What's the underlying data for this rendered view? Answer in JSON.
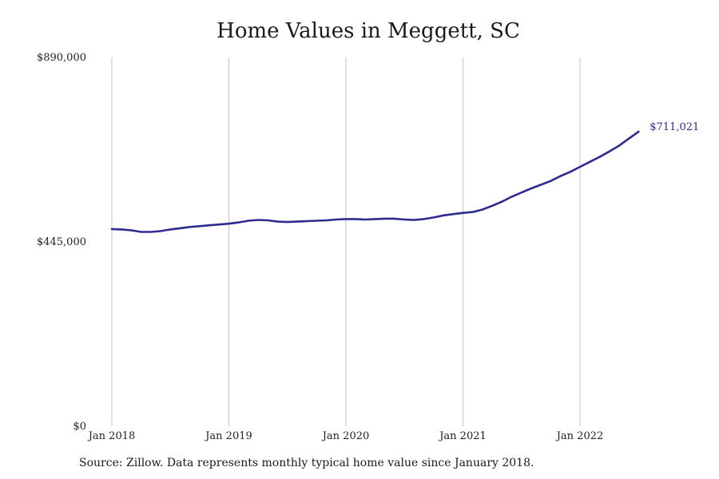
{
  "chart_data": {
    "type": "line",
    "title": "Home Values in Meggett, SC",
    "xlabel": "",
    "ylabel": "",
    "ylim": [
      0,
      890000
    ],
    "xlim": [
      "2018-01",
      "2022-06"
    ],
    "grid": "vertical lines at year starts",
    "legend": "none",
    "y_ticks": [
      {
        "value": 0,
        "label": "$0"
      },
      {
        "value": 445000,
        "label": "$445,000"
      },
      {
        "value": 890000,
        "label": "$890,000"
      }
    ],
    "x_ticks": [
      {
        "value": "2018-01",
        "label": "Jan 2018"
      },
      {
        "value": "2019-01",
        "label": "Jan 2019"
      },
      {
        "value": "2020-01",
        "label": "Jan 2020"
      },
      {
        "value": "2021-01",
        "label": "Jan 2021"
      },
      {
        "value": "2022-01",
        "label": "Jan 2022"
      }
    ],
    "series": [
      {
        "color": "#2e2a8f",
        "end_label": "$711,021",
        "points": [
          [
            "2018-01",
            476000
          ],
          [
            "2018-02",
            475000
          ],
          [
            "2018-03",
            473000
          ],
          [
            "2018-04",
            469000
          ],
          [
            "2018-05",
            469000
          ],
          [
            "2018-06",
            471000
          ],
          [
            "2018-07",
            475000
          ],
          [
            "2018-08",
            478000
          ],
          [
            "2018-09",
            481000
          ],
          [
            "2018-10",
            483000
          ],
          [
            "2018-11",
            485000
          ],
          [
            "2018-12",
            487000
          ],
          [
            "2019-01",
            489000
          ],
          [
            "2019-02",
            492000
          ],
          [
            "2019-03",
            496000
          ],
          [
            "2019-04",
            498000
          ],
          [
            "2019-05",
            497000
          ],
          [
            "2019-06",
            494000
          ],
          [
            "2019-07",
            493000
          ],
          [
            "2019-08",
            494000
          ],
          [
            "2019-09",
            495000
          ],
          [
            "2019-10",
            496000
          ],
          [
            "2019-11",
            497000
          ],
          [
            "2019-12",
            499000
          ],
          [
            "2020-01",
            500000
          ],
          [
            "2020-02",
            500000
          ],
          [
            "2020-03",
            499000
          ],
          [
            "2020-04",
            500000
          ],
          [
            "2020-05",
            501000
          ],
          [
            "2020-06",
            501000
          ],
          [
            "2020-07",
            499000
          ],
          [
            "2020-08",
            498000
          ],
          [
            "2020-09",
            500000
          ],
          [
            "2020-10",
            504000
          ],
          [
            "2020-11",
            509000
          ],
          [
            "2020-12",
            512000
          ],
          [
            "2021-01",
            515000
          ],
          [
            "2021-02",
            517000
          ],
          [
            "2021-03",
            523000
          ],
          [
            "2021-04",
            532000
          ],
          [
            "2021-05",
            542000
          ],
          [
            "2021-06",
            554000
          ],
          [
            "2021-07",
            564000
          ],
          [
            "2021-08",
            574000
          ],
          [
            "2021-09",
            583000
          ],
          [
            "2021-10",
            592000
          ],
          [
            "2021-11",
            604000
          ],
          [
            "2021-12",
            614000
          ],
          [
            "2022-01",
            626000
          ],
          [
            "2022-02",
            638000
          ],
          [
            "2022-03",
            650000
          ],
          [
            "2022-04",
            663000
          ],
          [
            "2022-05",
            677000
          ],
          [
            "2022-06",
            694000
          ],
          [
            "2022-07",
            711021
          ]
        ]
      }
    ]
  },
  "source_note": "Source: Zillow. Data represents monthly typical home value since January 2018."
}
